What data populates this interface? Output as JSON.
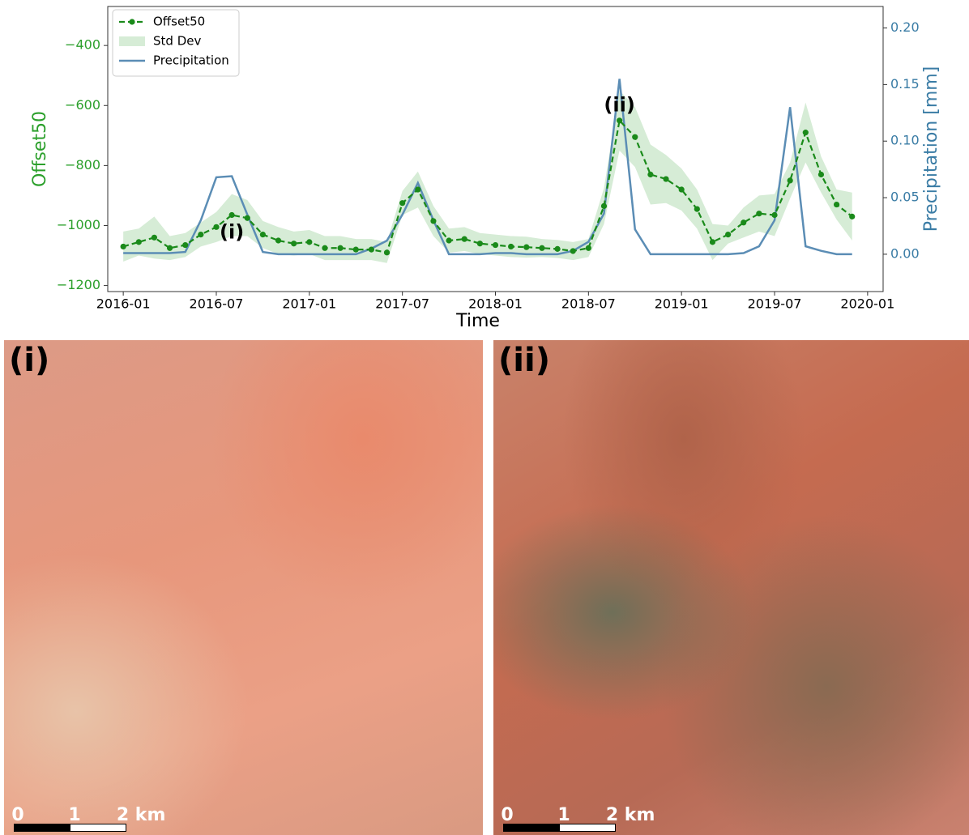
{
  "chart_data": {
    "type": "line",
    "xlabel": "Time",
    "ylabel": "Offset50",
    "y2label": "Precipitation [mm]",
    "x": [
      "2016-01",
      "2016-02",
      "2016-03",
      "2016-04",
      "2016-05",
      "2016-06",
      "2016-07",
      "2016-08",
      "2016-09",
      "2016-10",
      "2016-11",
      "2016-12",
      "2017-01",
      "2017-02",
      "2017-03",
      "2017-04",
      "2017-05",
      "2017-06",
      "2017-07",
      "2017-08",
      "2017-09",
      "2017-10",
      "2017-11",
      "2017-12",
      "2018-01",
      "2018-02",
      "2018-03",
      "2018-04",
      "2018-05",
      "2018-06",
      "2018-07",
      "2018-08",
      "2018-09",
      "2018-10",
      "2018-11",
      "2018-12",
      "2019-01",
      "2019-02",
      "2019-03",
      "2019-04",
      "2019-05",
      "2019-06",
      "2019-07",
      "2019-08",
      "2019-09",
      "2019-10",
      "2019-11",
      "2019-12"
    ],
    "series": [
      {
        "name": "Offset50",
        "color": "#1a8a1a",
        "values": [
          -1070,
          -1055,
          -1040,
          -1075,
          -1065,
          -1030,
          -1005,
          -965,
          -975,
          -1030,
          -1050,
          -1060,
          -1055,
          -1075,
          -1075,
          -1080,
          -1080,
          -1090,
          -925,
          -880,
          -985,
          -1050,
          -1045,
          -1060,
          -1065,
          -1070,
          -1072,
          -1075,
          -1078,
          -1085,
          -1075,
          -935,
          -650,
          -705,
          -830,
          -845,
          -880,
          -945,
          -1055,
          -1030,
          -990,
          -960,
          -965,
          -850,
          -690,
          -830,
          -930,
          -970
        ]
      },
      {
        "name": "Std Dev",
        "color": "#d6ecd6",
        "values": [
          50,
          45,
          70,
          40,
          40,
          40,
          50,
          70,
          60,
          45,
          45,
          40,
          40,
          40,
          40,
          35,
          35,
          35,
          40,
          60,
          50,
          40,
          40,
          35,
          35,
          35,
          35,
          30,
          30,
          30,
          30,
          60,
          100,
          100,
          100,
          80,
          70,
          65,
          60,
          30,
          50,
          60,
          70,
          60,
          100,
          60,
          50,
          80
        ]
      },
      {
        "name": "Precipitation",
        "color": "#5b8db5",
        "axis": "y2",
        "values": [
          0.001,
          0.001,
          0.001,
          0.001,
          0.002,
          0.03,
          0.068,
          0.069,
          0.035,
          0.002,
          0,
          0,
          0,
          0,
          0,
          0,
          0.005,
          0.012,
          0.035,
          0.063,
          0.03,
          0,
          0,
          0,
          0.001,
          0.001,
          0,
          0,
          0,
          0.003,
          0.011,
          0.036,
          0.155,
          0.022,
          0,
          0,
          0,
          0,
          0,
          0,
          0.001,
          0.007,
          0.03,
          0.13,
          0.007,
          0.003,
          0,
          0
        ]
      }
    ],
    "xlim": [
      "2015-12",
      "2020-02"
    ],
    "xticks": [
      "2016-01",
      "2016-07",
      "2017-01",
      "2017-07",
      "2018-01",
      "2018-07",
      "2019-01",
      "2019-07",
      "2020-01"
    ],
    "ylim": [
      -1220,
      -270
    ],
    "yticks": [
      {
        "value": -1200,
        "label": "−1200"
      },
      {
        "value": -1000,
        "label": "−1000"
      },
      {
        "value": -800,
        "label": "−800"
      },
      {
        "value": -600,
        "label": "−600"
      },
      {
        "value": -400,
        "label": "−400"
      }
    ],
    "y2lim": [
      -0.033,
      0.219
    ],
    "y2ticks": [
      {
        "value": 0,
        "label": "0.00"
      },
      {
        "value": 0.05,
        "label": "0.05"
      },
      {
        "value": 0.1,
        "label": "0.10"
      },
      {
        "value": 0.15,
        "label": "0.15"
      },
      {
        "value": 0.2,
        "label": "0.20"
      }
    ],
    "legend": "upper left",
    "annotations": [
      {
        "text": "(i)",
        "x": "2016-08",
        "y": -1025
      },
      {
        "text": "(ii)",
        "x": "2018-09",
        "y": -600
      }
    ]
  },
  "panels": [
    {
      "label": "(i)",
      "scale_labels": [
        "0",
        "1",
        "2 km"
      ]
    },
    {
      "label": "(ii)",
      "scale_labels": [
        "0",
        "1",
        "2 km"
      ]
    }
  ]
}
